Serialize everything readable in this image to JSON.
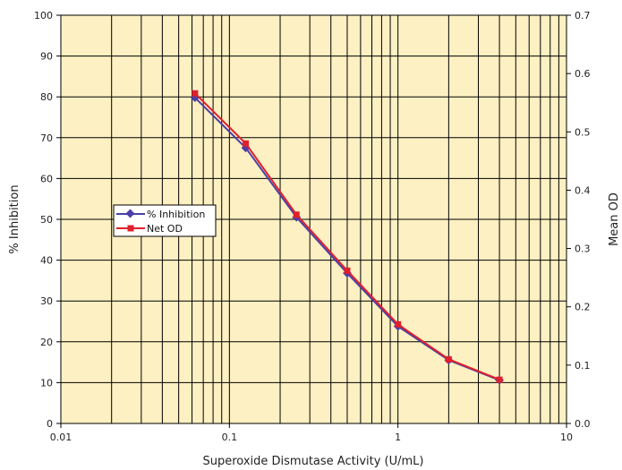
{
  "chart_data": {
    "type": "line",
    "xlabel": "Superoxide Dismutase Activity (U/mL)",
    "ylabel": "% Inhibition",
    "y2label": "Mean OD",
    "x_scale": "log",
    "xlim": [
      0.01,
      10
    ],
    "ylim": [
      0,
      100
    ],
    "y2lim": [
      0.0,
      0.7
    ],
    "x_ticks": [
      "0.01",
      "0.1",
      "1",
      "10"
    ],
    "y_ticks": [
      "0",
      "10",
      "20",
      "30",
      "40",
      "50",
      "60",
      "70",
      "80",
      "90",
      "100"
    ],
    "y2_ticks": [
      "0.0",
      "0.1",
      "0.2",
      "0.3",
      "0.4",
      "0.5",
      "0.6",
      "0.7"
    ],
    "grid": true,
    "background_color": "#fdf0c2",
    "legend_position": "left-middle",
    "x": [
      0.0625,
      0.125,
      0.25,
      0.5,
      1,
      2,
      4
    ],
    "series": [
      {
        "name": "% Inhibition",
        "axis": "left",
        "color": "#4b3fa8",
        "marker": "diamond",
        "values": [
          79.8,
          67.5,
          50.5,
          36.8,
          23.8,
          15.5,
          10.6
        ]
      },
      {
        "name": "Net OD",
        "axis": "right",
        "color": "#e0202a",
        "marker": "square",
        "values": [
          0.566,
          0.48,
          0.358,
          0.262,
          0.17,
          0.11,
          0.075
        ]
      }
    ]
  }
}
